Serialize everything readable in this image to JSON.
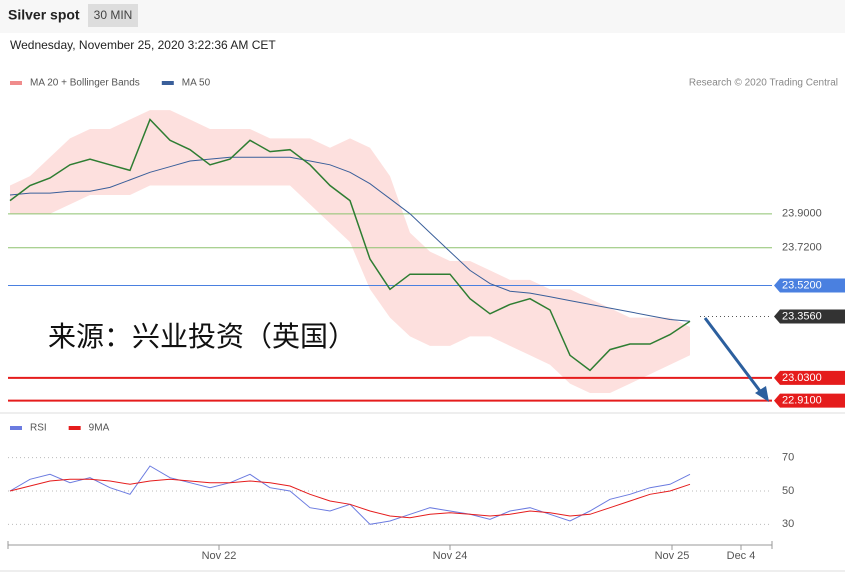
{
  "header": {
    "title": "Silver spot",
    "interval": "30 MIN",
    "date": "Wednesday, November 25, 2020 3:22:36 AM CET",
    "credit": "Research © 2020 Trading Central",
    "watermark": "来源：兴业投资（英国）"
  },
  "chart_data": [
    {
      "type": "line",
      "categories": [
        null,
        null,
        null,
        null,
        null,
        null,
        null,
        null,
        null,
        null,
        null,
        null,
        null,
        null,
        null,
        null,
        null,
        null,
        null,
        null,
        null,
        null,
        null,
        null,
        null,
        null,
        null,
        null,
        null,
        null,
        null,
        null,
        null,
        null,
        null
      ],
      "values": [
        23.97,
        24.05,
        24.09,
        24.16,
        24.19,
        24.16,
        24.13,
        24.4,
        24.29,
        24.24,
        24.16,
        24.19,
        24.29,
        24.23,
        24.24,
        24.16,
        24.05,
        23.97,
        23.66,
        23.5,
        23.58,
        23.58,
        23.58,
        23.45,
        23.37,
        23.42,
        23.45,
        23.39,
        23.15,
        23.07,
        23.18,
        23.21,
        23.21,
        23.26,
        23.33
      ],
      "color": "#2e7d32",
      "series": [
        {
          "name": "MA 20 + Bollinger Bands",
          "color": "#f08c8c",
          "band_upper": [
            24.05,
            24.1,
            24.2,
            24.3,
            24.35,
            24.35,
            24.4,
            24.45,
            24.45,
            24.4,
            24.35,
            24.35,
            24.35,
            24.3,
            24.3,
            24.3,
            24.25,
            24.3,
            24.25,
            24.1,
            23.8,
            23.7,
            23.65,
            23.65,
            23.6,
            23.55,
            23.55,
            23.5,
            23.5,
            23.45,
            23.4,
            23.35,
            23.35,
            23.35,
            23.3
          ],
          "band_lower": [
            23.9,
            23.9,
            23.9,
            23.95,
            24.0,
            24.0,
            24.0,
            24.05,
            24.05,
            24.05,
            24.05,
            24.05,
            24.05,
            24.05,
            24.05,
            23.95,
            23.85,
            23.75,
            23.5,
            23.35,
            23.25,
            23.2,
            23.2,
            23.25,
            23.25,
            23.2,
            23.15,
            23.1,
            23.0,
            22.95,
            22.95,
            23.0,
            23.05,
            23.1,
            23.15
          ]
        },
        {
          "name": "MA 50",
          "color": "#3a5f9a",
          "values": [
            24.0,
            24.01,
            24.01,
            24.02,
            24.02,
            24.04,
            24.08,
            24.12,
            24.15,
            24.18,
            24.19,
            24.2,
            24.2,
            24.2,
            24.2,
            24.18,
            24.16,
            24.12,
            24.06,
            23.98,
            23.9,
            23.8,
            23.7,
            23.6,
            23.53,
            23.49,
            23.48,
            23.46,
            23.44,
            23.42,
            23.4,
            23.38,
            23.36,
            23.34,
            23.33
          ]
        }
      ],
      "levels": [
        {
          "value": 23.9,
          "label": "23.9000",
          "color": "#8dc26f",
          "label_box": false
        },
        {
          "value": 23.72,
          "label": "23.7200",
          "color": "#8dc26f",
          "label_box": false
        },
        {
          "value": 23.52,
          "label": "23.5200",
          "color": "#4a80e0",
          "label_box": true
        },
        {
          "value": 23.356,
          "label": "23.3560",
          "color": "#333333",
          "label_box": true
        },
        {
          "value": 23.03,
          "label": "23.0300",
          "color": "#e51c1c",
          "label_box": true
        },
        {
          "value": 22.91,
          "label": "22.9100",
          "color": "#e51c1c",
          "label_box": true
        }
      ],
      "xlim": [
        -0.1,
        38.1
      ],
      "ylim": [
        22.86,
        24.53
      ]
    },
    {
      "type": "line",
      "categories": [
        null,
        null,
        null,
        null,
        null,
        null,
        null,
        null,
        null,
        null,
        null,
        null,
        null,
        null,
        null,
        null,
        null,
        null,
        null,
        null,
        null,
        null,
        null,
        null,
        null,
        null,
        null,
        null,
        null,
        null,
        null,
        null,
        null,
        null,
        null
      ],
      "series": [
        {
          "name": "RSI",
          "color": "#6b7be0",
          "values": [
            50,
            57,
            60,
            55,
            58,
            52,
            48,
            65,
            58,
            55,
            52,
            55,
            60,
            52,
            50,
            40,
            38,
            42,
            30,
            32,
            36,
            40,
            38,
            36,
            33,
            38,
            40,
            36,
            32,
            38,
            45,
            48,
            52,
            54,
            60
          ]
        },
        {
          "name": "9MA",
          "color": "#e51c1c",
          "values": [
            50,
            53,
            56,
            57,
            57,
            56,
            54,
            56,
            57,
            56,
            55,
            55,
            56,
            55,
            53,
            48,
            44,
            42,
            38,
            35,
            34,
            36,
            37,
            36,
            35,
            36,
            38,
            37,
            35,
            36,
            40,
            44,
            48,
            50,
            54
          ]
        }
      ],
      "xlim": [
        -0.1,
        38.1
      ],
      "ylim": [
        20,
        80
      ],
      "yticks": [
        70,
        50,
        30
      ],
      "xticks": [
        {
          "value": 10.45,
          "label": "Nov 22"
        },
        {
          "value": 22,
          "label": "Nov 24"
        },
        {
          "value": 33.1,
          "label": "Nov 25"
        },
        {
          "value": 36.55,
          "label": "Dec 4"
        }
      ]
    }
  ]
}
